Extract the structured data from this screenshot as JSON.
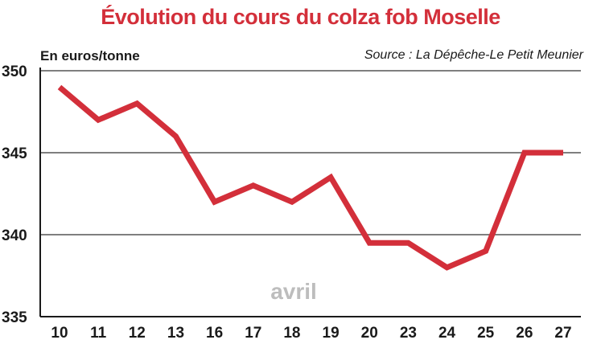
{
  "title": "Évolution du cours du colza fob Moselle",
  "unit_label": "En euros/tonne",
  "source": "Source : La Dépêche-Le Petit Meunier",
  "colors": {
    "line": "#d32f3a",
    "title": "#d32f3a",
    "grid": "#555555",
    "month": "#bdbdbd"
  },
  "chart_data": {
    "type": "line",
    "title": "Évolution du cours du colza fob Moselle",
    "ylabel": "En euros/tonne",
    "xlabel": "",
    "categories": [
      "10",
      "11",
      "12",
      "13",
      "16",
      "17",
      "18",
      "19",
      "20",
      "23",
      "24",
      "25",
      "26",
      "27"
    ],
    "values": [
      349,
      347,
      348,
      346,
      342,
      343,
      342,
      343.5,
      339.5,
      339.5,
      338,
      339,
      345,
      345
    ],
    "ylim": [
      335,
      350
    ],
    "yticks": [
      335,
      340,
      345,
      350
    ],
    "annotation": "avril",
    "grid": true
  }
}
